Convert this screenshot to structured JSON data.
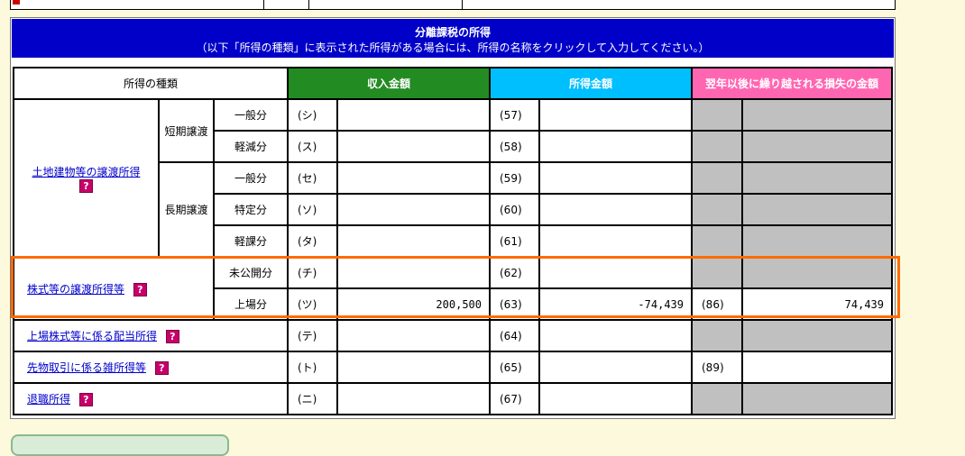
{
  "section": {
    "title": "分離課税の所得",
    "subtitle": "（以下「所得の種類」に表示された所得がある場合には、所得の名称をクリックして入力してください。）"
  },
  "headers": {
    "kind": "所得の種類",
    "income": "収入金額",
    "shotoku": "所得金額",
    "loss": "翌年以後に繰り越される損失の金額"
  },
  "help_icon": "?",
  "colors": {
    "header": "#0000c8",
    "income": "#228b22",
    "shotoku": "#00bfff",
    "loss": "#ff66b2",
    "highlight": "#ff6a00"
  },
  "land": {
    "label": "土地建物等の譲渡所得",
    "short": "短期譲渡",
    "long": "長期譲渡",
    "rows": [
      {
        "sub": "一般分",
        "code": "(シ)",
        "income": "",
        "num": "(57)",
        "shotoku": ""
      },
      {
        "sub": "軽減分",
        "code": "(ス)",
        "income": "",
        "num": "(58)",
        "shotoku": ""
      },
      {
        "sub": "一般分",
        "code": "(セ)",
        "income": "",
        "num": "(59)",
        "shotoku": ""
      },
      {
        "sub": "特定分",
        "code": "(ソ)",
        "income": "",
        "num": "(60)",
        "shotoku": ""
      },
      {
        "sub": "軽課分",
        "code": "(タ)",
        "income": "",
        "num": "(61)",
        "shotoku": ""
      }
    ]
  },
  "stock": {
    "label": "株式等の譲渡所得等",
    "rows": [
      {
        "sub": "未公開分",
        "code": "(チ)",
        "income": "",
        "num": "(62)",
        "shotoku": ""
      },
      {
        "sub": "上場分",
        "code": "(ツ)",
        "income": "200,500",
        "num": "(63)",
        "shotoku": "-74,439",
        "loss_num": "(86)",
        "loss": "74,439"
      }
    ]
  },
  "dividend": {
    "label": "上場株式等に係る配当所得",
    "code": "(テ)",
    "income": "",
    "num": "(64)",
    "shotoku": ""
  },
  "futures": {
    "label": "先物取引に係る雑所得等",
    "code": "(ト)",
    "income": "",
    "num": "(65)",
    "shotoku": "",
    "loss_num": "(89)",
    "loss": ""
  },
  "retire": {
    "label": "退職所得",
    "code": "(ニ)",
    "income": "",
    "num": "(67)",
    "shotoku": ""
  }
}
